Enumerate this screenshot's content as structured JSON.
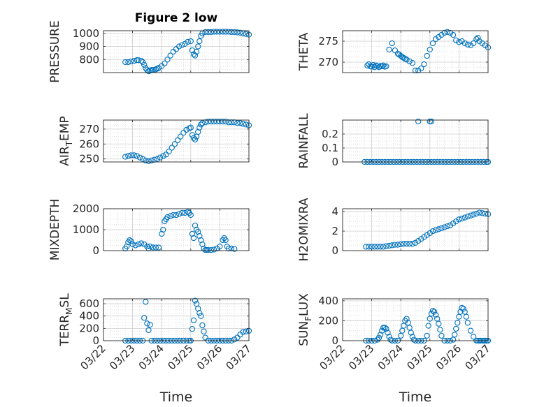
{
  "title": "Figure 2 low",
  "x_axis_label": "Time",
  "chart_data": [
    {
      "type": "scatter",
      "ylabel": "PRESSURE",
      "ylim": [
        700,
        1020
      ],
      "yticks": [
        800,
        900,
        1000
      ],
      "xlim": [
        "03/22",
        "03/27"
      ],
      "grid": true,
      "x": [
        22.75,
        22.85,
        22.95,
        23.05,
        23.15,
        23.2,
        23.3,
        23.35,
        23.4,
        23.45,
        23.5,
        23.55,
        23.6,
        23.65,
        23.7,
        23.75,
        23.8,
        23.85,
        23.9,
        24.0,
        24.1,
        24.2,
        24.3,
        24.4,
        24.5,
        24.6,
        24.7,
        24.8,
        24.9,
        25.0,
        25.05,
        25.1,
        25.15,
        25.2,
        25.25,
        25.3,
        25.35,
        25.4,
        25.5,
        25.6,
        25.7,
        25.8,
        25.9,
        26.0,
        26.1,
        26.2,
        26.3,
        26.4,
        26.5,
        26.6,
        26.7,
        26.8,
        26.9,
        27.0
      ],
      "y": [
        780,
        780,
        785,
        790,
        795,
        795,
        790,
        780,
        760,
        735,
        720,
        710,
        715,
        720,
        720,
        720,
        725,
        730,
        735,
        750,
        770,
        800,
        830,
        860,
        880,
        900,
        910,
        920,
        935,
        940,
        870,
        840,
        830,
        860,
        900,
        940,
        980,
        1000,
        1010,
        1010,
        1010,
        1012,
        1012,
        1012,
        1012,
        1012,
        1012,
        1010,
        1010,
        1008,
        1005,
        1000,
        995,
        990
      ],
      "xtick_labels": [
        "03/22",
        "03/23",
        "03/24",
        "03/25",
        "03/26",
        "03/27"
      ]
    },
    {
      "type": "scatter",
      "ylabel": "THETA",
      "ylim": [
        267.5,
        277.5
      ],
      "yticks": [
        270,
        275
      ],
      "xlim": [
        "03/22",
        "03/27"
      ],
      "grid": true,
      "x": [
        22.85,
        22.9,
        22.95,
        23.0,
        23.05,
        23.1,
        23.15,
        23.2,
        23.25,
        23.3,
        23.35,
        23.4,
        23.45,
        23.5,
        23.6,
        23.7,
        23.8,
        23.9,
        23.95,
        24.0,
        24.05,
        24.1,
        24.15,
        24.2,
        24.3,
        24.4,
        24.5,
        24.6,
        24.7,
        24.8,
        24.9,
        25.0,
        25.1,
        25.2,
        25.3,
        25.4,
        25.5,
        25.6,
        25.7,
        25.8,
        25.9,
        26.0,
        26.1,
        26.2,
        26.3,
        26.4,
        26.5,
        26.6,
        26.65,
        26.7,
        26.8,
        26.9,
        27.0
      ],
      "y": [
        269.2,
        269.5,
        269.0,
        268.9,
        269.3,
        268.8,
        269.2,
        269.0,
        268.8,
        269.1,
        269.0,
        269.2,
        268.9,
        269.0,
        273.0,
        274.5,
        272.8,
        272.0,
        271.8,
        271.5,
        271.2,
        271.0,
        270.8,
        270.6,
        270.2,
        269.8,
        268.0,
        268.0,
        268.5,
        269.5,
        271.5,
        273.0,
        274.5,
        275.5,
        276.0,
        276.5,
        277.0,
        277.2,
        277.0,
        276.5,
        275.2,
        274.8,
        275.0,
        274.5,
        274.2,
        274.0,
        274.5,
        275.5,
        275.8,
        275.0,
        274.5,
        274.0,
        273.5
      ],
      "xtick_labels": [
        "03/22",
        "03/23",
        "03/24",
        "03/25",
        "03/26",
        "03/27"
      ]
    },
    {
      "type": "scatter",
      "ylabel": "AIR_TEMP",
      "ylabel_main": "AIR",
      "ylabel_sub": "T",
      "ylabel_tail": "EMP",
      "ylim": [
        248,
        276
      ],
      "yticks": [
        250,
        260,
        270
      ],
      "xlim": [
        "03/22",
        "03/27"
      ],
      "grid": true,
      "x": [
        22.75,
        22.85,
        22.95,
        23.05,
        23.15,
        23.25,
        23.35,
        23.45,
        23.55,
        23.65,
        23.75,
        23.85,
        23.95,
        24.05,
        24.15,
        24.25,
        24.35,
        24.45,
        24.55,
        24.65,
        24.75,
        24.85,
        24.95,
        25.0,
        25.05,
        25.1,
        25.15,
        25.2,
        25.25,
        25.3,
        25.35,
        25.4,
        25.5,
        25.6,
        25.7,
        25.8,
        25.9,
        26.0,
        26.1,
        26.2,
        26.3,
        26.4,
        26.5,
        26.6,
        26.7,
        26.8,
        26.9,
        27.0
      ],
      "y": [
        251.5,
        252,
        252.5,
        252.5,
        252,
        251,
        250,
        249,
        248.5,
        249,
        249.5,
        250,
        251,
        252,
        253,
        255,
        257.5,
        260,
        262.5,
        265,
        267.5,
        269.5,
        270.5,
        271,
        266,
        264,
        263,
        265,
        268,
        271,
        273,
        274,
        274.5,
        275,
        275,
        275,
        275,
        275,
        275,
        275,
        274.5,
        274.5,
        274.5,
        274,
        274,
        273.5,
        273,
        272.5
      ],
      "xtick_labels": [
        "03/22",
        "03/23",
        "03/24",
        "03/25",
        "03/26",
        "03/27"
      ]
    },
    {
      "type": "scatter",
      "ylabel": "RAINFALL",
      "ylim": [
        0,
        0.3
      ],
      "yticks": [
        0,
        0.1,
        0.2
      ],
      "xlim": [
        "03/22",
        "03/27"
      ],
      "grid": true,
      "x": [
        22.75,
        22.85,
        22.95,
        23.05,
        23.15,
        23.25,
        23.35,
        23.45,
        23.55,
        23.65,
        23.75,
        23.85,
        23.95,
        24.05,
        24.15,
        24.25,
        24.35,
        24.45,
        24.55,
        24.65,
        24.75,
        24.85,
        24.95,
        25.05,
        25.15,
        25.25,
        25.35,
        25.45,
        25.55,
        25.65,
        25.75,
        25.85,
        25.95,
        26.05,
        26.15,
        26.25,
        26.35,
        26.45,
        26.55,
        26.65,
        26.75,
        26.85,
        26.95,
        27.0,
        24.6,
        25.0,
        25.05
      ],
      "y": [
        0,
        0,
        0,
        0,
        0,
        0,
        0,
        0,
        0,
        0,
        0,
        0,
        0,
        0,
        0,
        0,
        0,
        0,
        0,
        0,
        0,
        0,
        0,
        0,
        0,
        0,
        0,
        0,
        0,
        0,
        0,
        0,
        0,
        0,
        0,
        0,
        0,
        0,
        0,
        0,
        0,
        0,
        0,
        0,
        0.29,
        0.29,
        0.29
      ],
      "xtick_labels": [
        "03/22",
        "03/23",
        "03/24",
        "03/25",
        "03/26",
        "03/27"
      ]
    },
    {
      "type": "scatter",
      "ylabel": "MIXDEPTH",
      "ylim": [
        0,
        2000
      ],
      "yticks": [
        0,
        1000,
        2000
      ],
      "xlim": [
        "03/22",
        "03/27"
      ],
      "grid": true,
      "x": [
        22.75,
        22.8,
        22.85,
        22.9,
        22.95,
        23.0,
        23.1,
        23.2,
        23.3,
        23.4,
        23.5,
        23.55,
        23.6,
        23.7,
        23.8,
        23.9,
        24.0,
        24.05,
        24.1,
        24.15,
        24.2,
        24.3,
        24.4,
        24.5,
        24.6,
        24.7,
        24.8,
        24.9,
        24.95,
        25.0,
        25.05,
        25.1,
        25.15,
        25.2,
        25.25,
        25.3,
        25.35,
        25.4,
        25.45,
        25.5,
        25.55,
        25.6,
        25.7,
        25.8,
        25.9,
        26.0,
        26.1,
        26.15,
        26.2,
        26.25,
        26.3,
        26.4,
        26.5
      ],
      "y": [
        100,
        200,
        400,
        500,
        450,
        300,
        250,
        300,
        350,
        300,
        200,
        100,
        200,
        150,
        150,
        150,
        800,
        1000,
        1400,
        1500,
        1600,
        1650,
        1700,
        1700,
        1750,
        1800,
        1800,
        1850,
        1800,
        1700,
        800,
        600,
        1200,
        1000,
        900,
        700,
        500,
        300,
        100,
        30,
        30,
        30,
        30,
        50,
        100,
        200,
        500,
        600,
        500,
        200,
        100,
        100,
        80
      ],
      "xtick_labels": [
        "03/22",
        "03/23",
        "03/24",
        "03/25",
        "03/26",
        "03/27"
      ]
    },
    {
      "type": "scatter",
      "ylabel": "H2OMIXRA",
      "ylim": [
        0,
        4.3
      ],
      "yticks": [
        0,
        2,
        4
      ],
      "xlim": [
        "03/22",
        "03/27"
      ],
      "grid": true,
      "x": [
        22.8,
        22.9,
        23.0,
        23.1,
        23.2,
        23.3,
        23.4,
        23.5,
        23.6,
        23.7,
        23.8,
        23.9,
        24.0,
        24.1,
        24.2,
        24.3,
        24.4,
        24.5,
        24.6,
        24.7,
        24.8,
        24.9,
        25.0,
        25.1,
        25.2,
        25.3,
        25.4,
        25.5,
        25.6,
        25.7,
        25.8,
        25.9,
        26.0,
        26.1,
        26.2,
        26.3,
        26.4,
        26.5,
        26.6,
        26.7,
        26.8,
        26.9,
        27.0
      ],
      "y": [
        0.4,
        0.4,
        0.4,
        0.4,
        0.4,
        0.4,
        0.4,
        0.45,
        0.5,
        0.55,
        0.6,
        0.6,
        0.65,
        0.7,
        0.7,
        0.7,
        0.7,
        0.8,
        1.0,
        1.2,
        1.4,
        1.6,
        1.8,
        2.0,
        2.1,
        2.2,
        2.3,
        2.4,
        2.5,
        2.6,
        2.8,
        3.0,
        3.2,
        3.3,
        3.4,
        3.5,
        3.6,
        3.7,
        3.8,
        3.9,
        3.85,
        3.8,
        3.75
      ],
      "xtick_labels": [
        "03/22",
        "03/23",
        "03/24",
        "03/25",
        "03/26",
        "03/27"
      ]
    },
    {
      "type": "scatter",
      "ylabel": "TERR_MSL",
      "ylabel_main": "TERR",
      "ylabel_sub": "M",
      "ylabel_tail": "SL",
      "ylim": [
        0,
        680
      ],
      "yticks": [
        0,
        200,
        400,
        600
      ],
      "xlim": [
        "03/22",
        "03/27"
      ],
      "grid": true,
      "x": [
        22.75,
        22.85,
        22.95,
        23.05,
        23.15,
        23.25,
        23.35,
        23.4,
        23.45,
        23.5,
        23.55,
        23.6,
        23.65,
        23.75,
        23.85,
        23.95,
        24.05,
        24.15,
        24.25,
        24.35,
        24.45,
        24.55,
        24.65,
        24.75,
        24.85,
        24.95,
        25.0,
        25.05,
        25.1,
        25.15,
        25.2,
        25.25,
        25.3,
        25.35,
        25.4,
        25.45,
        25.5,
        25.6,
        25.7,
        25.8,
        25.9,
        26.0,
        26.1,
        26.2,
        26.3,
        26.4,
        26.5,
        26.6,
        26.7,
        26.8,
        26.9,
        27.0
      ],
      "y": [
        0,
        0,
        0,
        0,
        0,
        0,
        0,
        370,
        630,
        280,
        170,
        260,
        0,
        0,
        0,
        0,
        0,
        0,
        0,
        0,
        0,
        0,
        0,
        0,
        0,
        0,
        0,
        190,
        330,
        650,
        600,
        520,
        450,
        400,
        250,
        150,
        50,
        0,
        0,
        0,
        0,
        0,
        0,
        0,
        0,
        0,
        20,
        50,
        100,
        140,
        150,
        160
      ],
      "xtick_labels": [
        "03/22",
        "03/23",
        "03/24",
        "03/25",
        "03/26",
        "03/27"
      ]
    },
    {
      "type": "scatter",
      "ylabel": "SUN_FLUX",
      "ylabel_main": "SUN",
      "ylabel_sub": "F",
      "ylabel_tail": "LUX",
      "ylim": [
        0,
        420
      ],
      "yticks": [
        0,
        200,
        400
      ],
      "xlim": [
        "03/22",
        "03/27"
      ],
      "grid": true,
      "x": [
        22.8,
        22.9,
        23.0,
        23.1,
        23.2,
        23.25,
        23.3,
        23.35,
        23.4,
        23.45,
        23.5,
        23.55,
        23.6,
        23.65,
        23.7,
        23.8,
        23.9,
        24.0,
        24.05,
        24.1,
        24.15,
        24.2,
        24.25,
        24.3,
        24.35,
        24.4,
        24.45,
        24.5,
        24.6,
        24.7,
        24.8,
        24.9,
        24.95,
        25.0,
        25.05,
        25.1,
        25.15,
        25.2,
        25.25,
        25.3,
        25.35,
        25.4,
        25.5,
        25.6,
        25.7,
        25.8,
        25.85,
        25.9,
        25.95,
        26.0,
        26.05,
        26.1,
        26.15,
        26.2,
        26.25,
        26.3,
        26.4,
        26.5,
        26.6,
        26.65,
        26.7,
        26.75,
        26.8,
        26.85,
        26.9,
        26.95,
        27.0
      ],
      "y": [
        0,
        0,
        0,
        0,
        10,
        30,
        60,
        100,
        130,
        130,
        120,
        80,
        40,
        10,
        0,
        0,
        0,
        50,
        100,
        150,
        200,
        220,
        180,
        130,
        80,
        40,
        10,
        0,
        0,
        0,
        0,
        50,
        150,
        220,
        270,
        300,
        290,
        260,
        220,
        170,
        110,
        50,
        0,
        0,
        0,
        10,
        60,
        120,
        180,
        240,
        290,
        330,
        320,
        290,
        240,
        180,
        100,
        40,
        0,
        0,
        0,
        0,
        0,
        0,
        0,
        0,
        0
      ],
      "xtick_labels": [
        "03/22",
        "03/23",
        "03/24",
        "03/25",
        "03/26",
        "03/27"
      ]
    }
  ]
}
